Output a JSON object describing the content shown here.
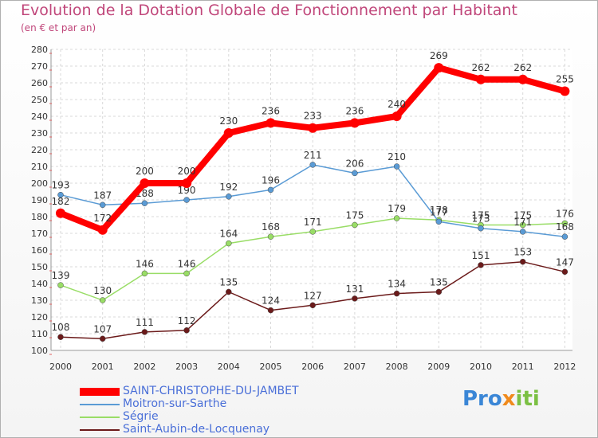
{
  "chart_data": {
    "type": "line",
    "title": "Evolution de la Dotation Globale de Fonctionnement par Habitant",
    "subtitle": "(en € et par an)",
    "x": [
      "2000",
      "2001",
      "2002",
      "2003",
      "2004",
      "2005",
      "2006",
      "2007",
      "2008",
      "2009",
      "2010",
      "2011",
      "2012"
    ],
    "ylim": [
      100,
      280
    ],
    "yticks": [
      100,
      110,
      120,
      130,
      140,
      150,
      160,
      170,
      180,
      190,
      200,
      210,
      220,
      230,
      240,
      250,
      260,
      270,
      280
    ],
    "grid": true,
    "legend_position": "bottom",
    "series": [
      {
        "name": "SAINT-CHRISTOPHE-DU-JAMBET",
        "color": "#ff0000",
        "values": [
          182,
          172,
          200,
          200,
          230,
          236,
          233,
          236,
          240,
          269,
          262,
          262,
          255
        ]
      },
      {
        "name": "Moitron-sur-Sarthe",
        "color": "#5a9bd5",
        "values": [
          193,
          187,
          188,
          190,
          192,
          196,
          211,
          206,
          210,
          177,
          173,
          171,
          168
        ]
      },
      {
        "name": "Ségrie",
        "color": "#99dd66",
        "values": [
          139,
          130,
          146,
          146,
          164,
          168,
          171,
          175,
          179,
          178,
          175,
          175,
          176
        ]
      },
      {
        "name": "Saint-Aubin-de-Locquenay",
        "color": "#6b1a1a",
        "values": [
          108,
          107,
          111,
          112,
          135,
          124,
          127,
          131,
          134,
          135,
          151,
          153,
          147
        ]
      }
    ]
  },
  "logo": {
    "parts": [
      "Pro",
      "x",
      "iti"
    ],
    "colors": [
      "#3a86d6",
      "#f08a1c",
      "#7bc043"
    ]
  }
}
